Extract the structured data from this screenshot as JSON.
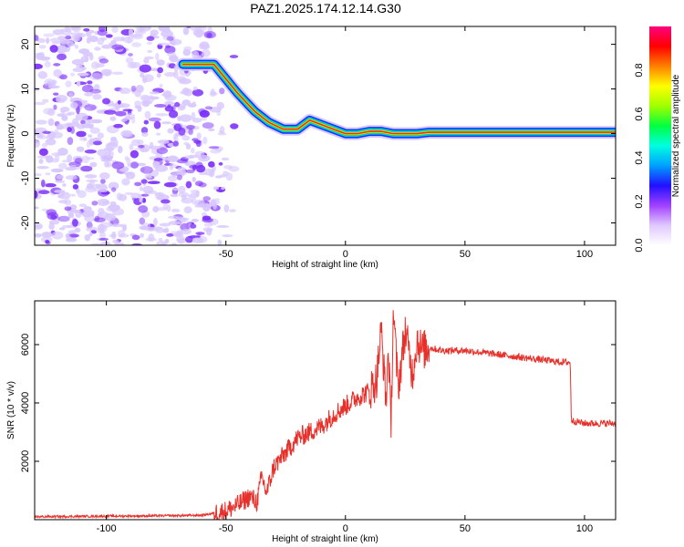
{
  "title": "PAZ1.2025.174.12.14.G30",
  "colors": {
    "snr_line": "#e8302a",
    "track_core": "#e8302a",
    "track_band_1": "#ffe000",
    "track_band_2": "#00e070",
    "track_band_3": "#00c0ff",
    "track_band_4": "#1030ff",
    "noise_purple": "#7a2cff",
    "noise_light": "#d8c8ff"
  },
  "chart_data": [
    {
      "type": "heatmap",
      "xlabel": "Height of straight line (km)",
      "ylabel": "Frequency (Hz)",
      "xlim": [
        -130,
        113
      ],
      "ylim": [
        -25,
        24
      ],
      "x_ticks": [
        -100,
        -50,
        0,
        50,
        100
      ],
      "y_ticks": [
        -20,
        -10,
        0,
        10,
        20
      ],
      "grid": false,
      "noise_region_x": [
        -130,
        -52
      ],
      "signal_track": {
        "x": [
          -68,
          -55,
          -45,
          -38,
          -32,
          -26,
          -20,
          -15,
          -10,
          -5,
          0,
          5,
          10,
          15,
          20,
          25,
          30,
          35,
          113
        ],
        "y": [
          15.5,
          15.5,
          9,
          5,
          2.5,
          1,
          1,
          3,
          2,
          1,
          0,
          0,
          0.5,
          0.5,
          0,
          0,
          0,
          0.3,
          0.3
        ]
      },
      "colorbar": {
        "label": "Normalized spectral amplitude",
        "ticks": [
          0.0,
          0.2,
          0.4,
          0.6,
          0.8
        ],
        "range": [
          0,
          1
        ],
        "colormap": [
          "#ffffff",
          "#e0c8ff",
          "#a040ff",
          "#2010ff",
          "#00a0ff",
          "#00ffe0",
          "#00ff40",
          "#a0ff00",
          "#ffff00",
          "#ff8000",
          "#ff0000",
          "#ff0080"
        ]
      }
    },
    {
      "type": "line",
      "xlabel": "Height of straight line (km)",
      "ylabel": "SNR (10 * v/v)",
      "xlim": [
        -130,
        113
      ],
      "ylim": [
        0,
        7500
      ],
      "x_ticks": [
        -100,
        -50,
        0,
        50,
        100
      ],
      "y_ticks": [
        2000,
        4000,
        6000
      ],
      "grid": false,
      "series": [
        {
          "x": [
            -130,
            -100,
            -80,
            -60,
            -50,
            -45,
            -40,
            -37,
            -35,
            -33,
            -30,
            -25,
            -20,
            -15,
            -10,
            -5,
            0,
            5,
            10,
            13,
            15,
            17,
            18,
            19,
            20,
            22,
            25,
            28,
            30,
            32,
            35,
            40,
            50,
            60,
            70,
            80,
            90,
            94,
            94.5,
            100,
            113
          ],
          "y": [
            100,
            120,
            130,
            150,
            300,
            500,
            800,
            600,
            1500,
            900,
            1800,
            2300,
            2800,
            3000,
            3200,
            3600,
            3900,
            4200,
            4400,
            4800,
            6500,
            4000,
            6000,
            3000,
            7200,
            4500,
            6500,
            5000,
            6200,
            5800,
            5900,
            5800,
            5800,
            5700,
            5600,
            5500,
            5400,
            5400,
            3400,
            3300,
            3300
          ]
        }
      ]
    }
  ]
}
